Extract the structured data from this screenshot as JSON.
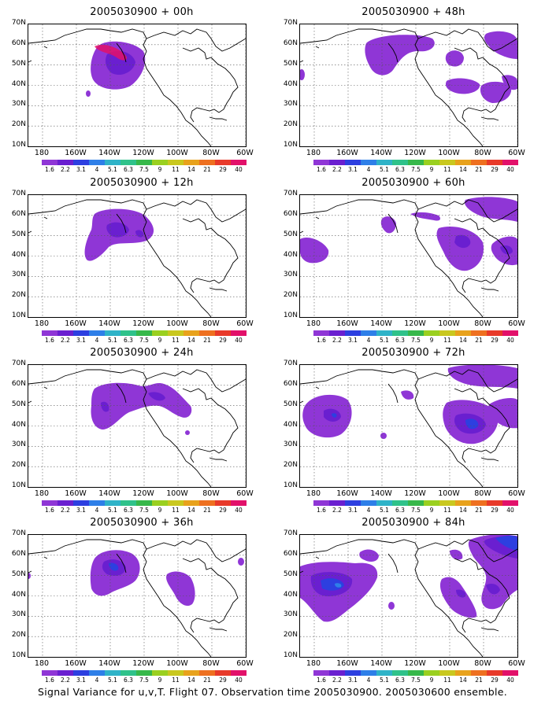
{
  "caption": "Signal Variance for u,v,T. Flight 07. Observation time 2005030900. 2005030600 ensemble.",
  "colors": {
    "scale": [
      "#8f36d6",
      "#6a1fd0",
      "#2d3fe0",
      "#2e7fe8",
      "#2fb3c8",
      "#2fc28a",
      "#37b84a",
      "#9ad020",
      "#c9c81f",
      "#e8a21c",
      "#ee7020",
      "#e83a2a",
      "#e2116a"
    ],
    "frame": "#000000",
    "grid": "#555555",
    "coast": "#000000"
  },
  "lat_labels": [
    "70N",
    "60N",
    "50N",
    "40N",
    "30N",
    "20N",
    "10N"
  ],
  "lon_labels": [
    "180",
    "160W",
    "140W",
    "120W",
    "100W",
    "80W",
    "60W"
  ],
  "colorbar_labels": [
    "1.6",
    "2.2",
    "3.1",
    "4",
    "5.1",
    "6.3",
    "7.5",
    "9",
    "11",
    "14",
    "21",
    "29",
    "40"
  ],
  "panels": [
    {
      "title": "2005030900 + 00h"
    },
    {
      "title": "2005030900 + 48h"
    },
    {
      "title": "2005030900 + 12h"
    },
    {
      "title": "2005030900 + 60h"
    },
    {
      "title": "2005030900 + 24h"
    },
    {
      "title": "2005030900 + 72h"
    },
    {
      "title": "2005030900 + 36h"
    },
    {
      "title": "2005030900 + 84h"
    }
  ]
}
